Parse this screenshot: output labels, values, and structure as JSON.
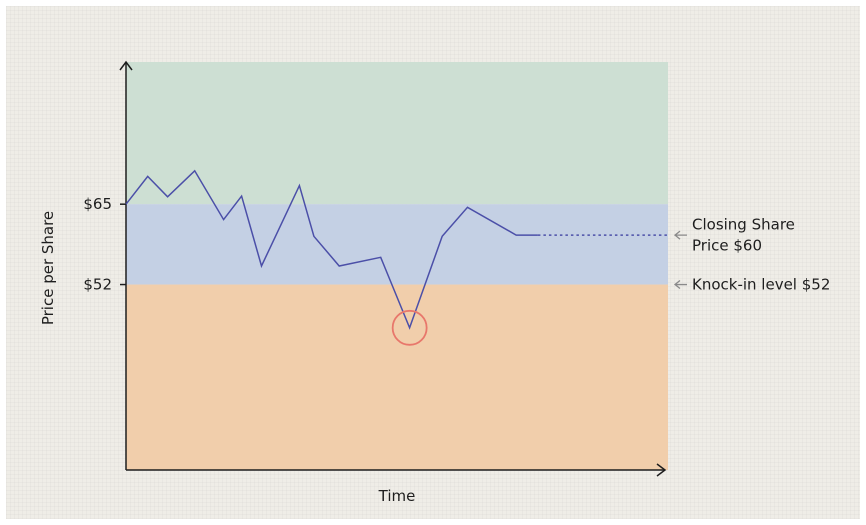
{
  "chart_data": {
    "type": "line",
    "xlabel": "Time",
    "ylabel": "Price per Share",
    "ytick_labels": [
      "$65",
      "$52"
    ],
    "yticks": [
      65,
      52
    ],
    "ylim": [
      22,
      88
    ],
    "xlim": [
      0,
      30
    ],
    "zones": [
      {
        "name": "above",
        "from": 65,
        "to": 88,
        "color": "#cddfd3"
      },
      {
        "name": "middle",
        "from": 52,
        "to": 65,
        "color": "#c4d0e4"
      },
      {
        "name": "below",
        "from": 22,
        "to": 52,
        "color": "#f1ceab"
      }
    ],
    "series": [
      {
        "line_color": "#4b4fa8",
        "x": [
          0,
          1.2,
          2.3,
          3.8,
          5.4,
          6.4,
          7.5,
          9.6,
          10.4,
          11.8,
          14.1,
          15.7,
          17.5,
          18.9,
          21.6,
          22.8
        ],
        "y": [
          65,
          69.5,
          66.2,
          70.4,
          62.5,
          66.3,
          55,
          68,
          59.8,
          55,
          56.4,
          45,
          59.8,
          64.5,
          60,
          60
        ]
      }
    ],
    "projection": {
      "x": [
        22.8,
        30
      ],
      "y": [
        60,
        60
      ],
      "style": "dotted"
    },
    "highlight_point": {
      "x": 15.7,
      "y": 45,
      "color": "#e8776b"
    },
    "annotations": [
      {
        "name": "closing-share-price",
        "lines": [
          "Closing Share",
          "Price $60"
        ],
        "value": 60
      },
      {
        "name": "knock-in-level",
        "lines": [
          "Knock-in level $52"
        ],
        "value": 52
      }
    ]
  }
}
